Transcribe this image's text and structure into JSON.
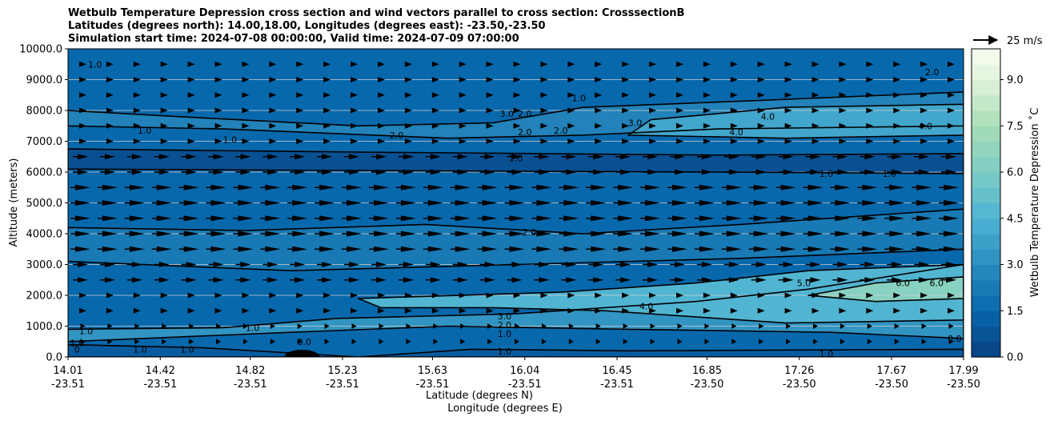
{
  "chart_data": {
    "type": "contour",
    "title_lines": [
      "Wetbulb Temperature Depression cross section and wind vectors parallel to cross section: CrosssectionB",
      "Latitudes (degrees north): 14.00,18.00, Longitudes (degrees east): -23.50,-23.50",
      "Simulation start time: 2024-07-08 00:00:00, Valid time: 2024-07-09 07:00:00"
    ],
    "ylabel": "Altitude (meters)",
    "xlabel_lat": "Latitude (degrees N)",
    "xlabel_lon": "Longitude (degrees E)",
    "ylim": [
      0,
      10000
    ],
    "y_ticks": [
      "0.0",
      "1000.0",
      "2000.0",
      "3000.0",
      "4000.0",
      "5000.0",
      "6000.0",
      "7000.0",
      "8000.0",
      "9000.0",
      "10000.0"
    ],
    "x_range": [
      14.01,
      17.99
    ],
    "x_ticks": [
      {
        "lat": "14.01",
        "lon": "-23.51",
        "pos": 14.01
      },
      {
        "lat": "14.42",
        "lon": "-23.51",
        "pos": 14.42
      },
      {
        "lat": "14.82",
        "lon": "-23.51",
        "pos": 14.82
      },
      {
        "lat": "15.23",
        "lon": "-23.51",
        "pos": 15.23
      },
      {
        "lat": "15.63",
        "lon": "-23.51",
        "pos": 15.63
      },
      {
        "lat": "16.04",
        "lon": "-23.51",
        "pos": 16.04
      },
      {
        "lat": "16.45",
        "lon": "-23.51",
        "pos": 16.45
      },
      {
        "lat": "16.85",
        "lon": "-23.50",
        "pos": 16.85
      },
      {
        "lat": "17.26",
        "lon": "-23.50",
        "pos": 17.26
      },
      {
        "lat": "17.67",
        "lon": "-23.50",
        "pos": 17.67
      },
      {
        "lat": "17.99",
        "lon": "-23.50",
        "pos": 17.99
      }
    ],
    "colorbar": {
      "label": "Wetbulb Temperature Depression $^\\circ$C",
      "min": 0,
      "max": 10,
      "ticks": [
        "0.0",
        "1.5",
        "3.0",
        "4.5",
        "6.0",
        "7.5",
        "9.0"
      ],
      "tick_values": [
        0,
        1.5,
        3.0,
        4.5,
        6.0,
        7.5,
        9.0
      ]
    },
    "wind_key": "25 m/s",
    "contour_labels": [
      {
        "text": "1.0",
        "x": 14.13,
        "y": 9500
      },
      {
        "text": "1.0",
        "x": 14.35,
        "y": 7350
      },
      {
        "text": "1.0",
        "x": 14.73,
        "y": 7050
      },
      {
        "text": "2.0",
        "x": 15.47,
        "y": 7200
      },
      {
        "text": "3.0",
        "x": 15.96,
        "y": 7900
      },
      {
        "text": "2.0",
        "x": 16.04,
        "y": 7900
      },
      {
        "text": "2.0",
        "x": 16.04,
        "y": 7300
      },
      {
        "text": "2.0",
        "x": 16.2,
        "y": 7350
      },
      {
        "text": "1.0",
        "x": 16.28,
        "y": 8400
      },
      {
        "text": "3.0",
        "x": 16.53,
        "y": 7600
      },
      {
        "text": "4.0",
        "x": 16.98,
        "y": 7300
      },
      {
        "text": "4.0",
        "x": 17.12,
        "y": 7800
      },
      {
        "text": "2.0",
        "x": 17.85,
        "y": 9250
      },
      {
        "text": "4.0",
        "x": 17.82,
        "y": 7500
      },
      {
        "text": "1.0",
        "x": 16.0,
        "y": 6450
      },
      {
        "text": "1.0",
        "x": 17.38,
        "y": 5950
      },
      {
        "text": "1.0",
        "x": 17.66,
        "y": 5950
      },
      {
        "text": "2.0",
        "x": 16.06,
        "y": 4050
      },
      {
        "text": "5.0",
        "x": 17.28,
        "y": 2400
      },
      {
        "text": "6.0",
        "x": 17.72,
        "y": 2400
      },
      {
        "text": "6.0",
        "x": 17.87,
        "y": 2400
      },
      {
        "text": "4.0",
        "x": 16.58,
        "y": 1650
      },
      {
        "text": "3.0",
        "x": 15.95,
        "y": 1320
      },
      {
        "text": "2.0",
        "x": 15.95,
        "y": 1040
      },
      {
        "text": "1.0",
        "x": 15.95,
        "y": 750
      },
      {
        "text": "1.0",
        "x": 15.95,
        "y": 180
      },
      {
        "text": "0.0",
        "x": 15.06,
        "y": 500
      },
      {
        "text": "1.0",
        "x": 14.83,
        "y": 950
      },
      {
        "text": "1.0",
        "x": 14.33,
        "y": 250
      },
      {
        "text": "1.0",
        "x": 14.09,
        "y": 850
      },
      {
        "text": "1.0",
        "x": 14.05,
        "y": 450
      },
      {
        "text": "0",
        "x": 14.05,
        "y": 250
      },
      {
        "text": "1.0",
        "x": 14.54,
        "y": 250
      },
      {
        "text": "1.0",
        "x": 17.38,
        "y": 100
      },
      {
        "text": "0.0",
        "x": 17.95,
        "y": 600
      }
    ],
    "field_regions": [
      {
        "level": 0.6,
        "poly": [
          [
            14.01,
            6100
          ],
          [
            15.3,
            6050
          ],
          [
            16.9,
            6000
          ],
          [
            17.99,
            5950
          ],
          [
            17.99,
            6600
          ],
          [
            16.9,
            6550
          ],
          [
            15.3,
            6650
          ],
          [
            14.01,
            6750
          ]
        ]
      },
      {
        "level": 2.6,
        "poly": [
          [
            14.01,
            7500
          ],
          [
            14.7,
            7400
          ],
          [
            15.2,
            7250
          ],
          [
            15.7,
            7100
          ],
          [
            16.3,
            7200
          ],
          [
            16.9,
            7400
          ],
          [
            17.99,
            7500
          ],
          [
            17.99,
            8600
          ],
          [
            17.0,
            8300
          ],
          [
            16.3,
            8100
          ],
          [
            15.9,
            7600
          ],
          [
            15.3,
            7500
          ],
          [
            14.5,
            7800
          ],
          [
            14.01,
            8000
          ]
        ]
      },
      {
        "level": 4.0,
        "poly": [
          [
            16.5,
            7200
          ],
          [
            17.2,
            7100
          ],
          [
            17.99,
            7200
          ],
          [
            17.99,
            8200
          ],
          [
            17.2,
            8100
          ],
          [
            16.6,
            7700
          ]
        ]
      },
      {
        "level": 2.2,
        "poly": [
          [
            14.01,
            4200
          ],
          [
            14.8,
            4100
          ],
          [
            15.6,
            4300
          ],
          [
            16.3,
            4000
          ],
          [
            17.0,
            4300
          ],
          [
            17.99,
            4800
          ],
          [
            17.99,
            3500
          ],
          [
            17.0,
            3200
          ],
          [
            16.0,
            3000
          ],
          [
            15.0,
            2800
          ],
          [
            14.01,
            3100
          ]
        ]
      },
      {
        "level": 3.3,
        "poly": [
          [
            14.01,
            900
          ],
          [
            14.7,
            950
          ],
          [
            15.2,
            1250
          ],
          [
            16.0,
            1400
          ],
          [
            16.8,
            1800
          ],
          [
            17.3,
            2200
          ],
          [
            17.99,
            3000
          ],
          [
            17.99,
            600
          ],
          [
            17.4,
            800
          ],
          [
            16.5,
            900
          ],
          [
            15.7,
            1000
          ],
          [
            15.0,
            800
          ],
          [
            14.01,
            500
          ]
        ]
      },
      {
        "level": 4.6,
        "poly": [
          [
            15.3,
            1900
          ],
          [
            16.2,
            2100
          ],
          [
            16.8,
            2400
          ],
          [
            17.3,
            2800
          ],
          [
            17.99,
            3000
          ],
          [
            17.99,
            1200
          ],
          [
            17.2,
            1100
          ],
          [
            16.4,
            1500
          ],
          [
            15.9,
            1600
          ],
          [
            15.4,
            1600
          ]
        ]
      },
      {
        "level": 6.4,
        "poly": [
          [
            17.3,
            2000
          ],
          [
            17.6,
            2400
          ],
          [
            17.99,
            2600
          ],
          [
            17.99,
            1900
          ],
          [
            17.6,
            1800
          ]
        ]
      },
      {
        "level": 1.0,
        "poly": [
          [
            14.01,
            0
          ],
          [
            17.99,
            0
          ],
          [
            17.99,
            250
          ],
          [
            16.5,
            200
          ],
          [
            15.8,
            250
          ],
          [
            15.3,
            0
          ],
          [
            14.6,
            300
          ],
          [
            14.01,
            400
          ]
        ]
      }
    ]
  }
}
